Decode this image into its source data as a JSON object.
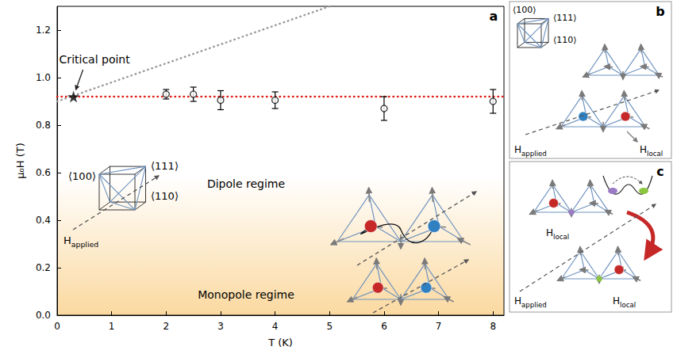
{
  "chart_data": {
    "type": "scatter",
    "panel_label": "a",
    "xlabel": "T (K)",
    "ylabel": "μ₀H (T)",
    "xlim": [
      0,
      8.2
    ],
    "xticks": [
      0,
      1,
      2,
      3,
      4,
      5,
      6,
      7,
      8
    ],
    "ylim": [
      0,
      1.3
    ],
    "yticks": [
      {
        "value": 0,
        "label": "0.0"
      },
      0.2,
      0.4,
      0.6,
      0.8,
      {
        "value": 1,
        "label": "1.0"
      },
      1.2
    ],
    "grid": false,
    "series": [
      {
        "type": "line",
        "x": [
          0,
          8.2
        ],
        "values": [
          0.92,
          0.92
        ],
        "color": "#e0201b",
        "line_style": "dotted"
      },
      {
        "type": "line",
        "x": [
          0,
          5
        ],
        "values": [
          0.9,
          1.3
        ],
        "color": "#9a9a9a",
        "line_style": "dotted"
      },
      {
        "type": "scatter",
        "x": [
          2,
          2.5,
          3,
          4,
          6,
          8
        ],
        "values": [
          0.93,
          0.93,
          0.905,
          0.905,
          0.87,
          0.9
        ],
        "errors": [
          0.02,
          0.03,
          0.04,
          0.035,
          0.05,
          0.05
        ],
        "color": "#000000",
        "marker": "circle-open"
      },
      {
        "type": "scatter",
        "x": [
          0.3
        ],
        "values": [
          0.92
        ],
        "color": "#000000",
        "marker": "star"
      }
    ],
    "annotations": [
      "Critical point",
      "Dipole regime",
      "Monopole regime"
    ]
  },
  "diagrams": {
    "a": {
      "directions": [
        "⟨100⟩",
        "⟨111⟩",
        "⟨110⟩"
      ],
      "applied": {
        "main": "H",
        "sub": "applied"
      }
    },
    "b": {
      "letter": "b",
      "directions": [
        "⟨100⟩",
        "⟨111⟩",
        "⟨110⟩"
      ],
      "applied": {
        "main": "H",
        "sub": "applied"
      },
      "local": {
        "main": "H",
        "sub": "local"
      }
    },
    "c": {
      "letter": "c",
      "applied": {
        "main": "H",
        "sub": "applied"
      },
      "local": [
        {
          "main": "H",
          "sub": "local"
        },
        {
          "main": "H",
          "sub": "local"
        }
      ]
    }
  }
}
